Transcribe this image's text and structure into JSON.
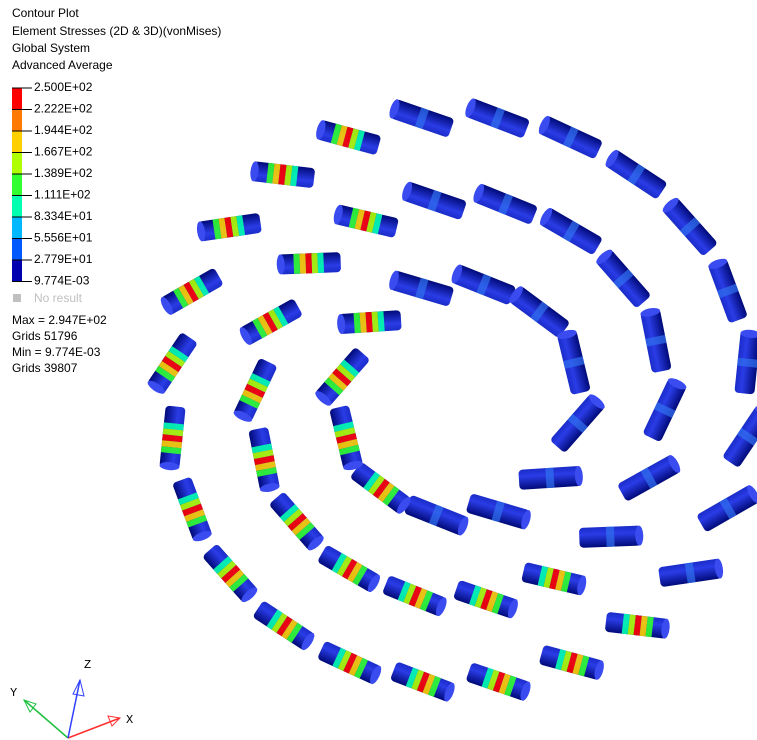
{
  "header": {
    "lines": [
      "Contour Plot",
      "Element Stresses (2D & 3D)(vonMises)",
      "Global System",
      "Advanced Average"
    ]
  },
  "legend": {
    "labels": [
      "2.500E+02",
      "2.222E+02",
      "1.944E+02",
      "1.667E+02",
      "1.389E+02",
      "1.111E+02",
      "8.334E+01",
      "5.556E+01",
      "2.779E+01",
      "9.774E-03"
    ],
    "no_result": "No result"
  },
  "stats": [
    "Max = 2.947E+02",
    "Grids 51796",
    "Min = 9.774E-03",
    "Grids 39807"
  ],
  "triad": {
    "x": "X",
    "y": "Y",
    "z": "Z"
  }
}
